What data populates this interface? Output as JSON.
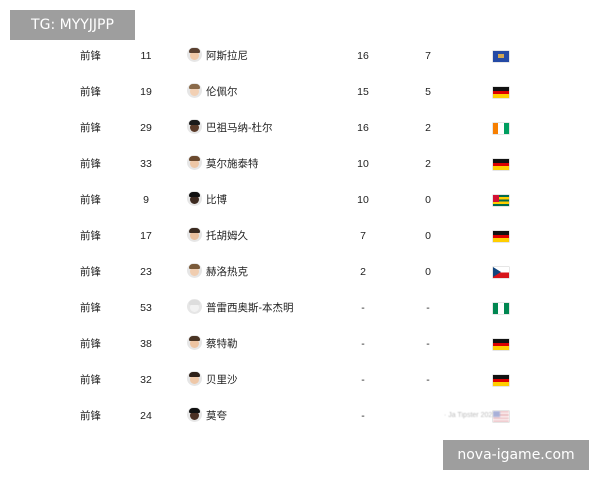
{
  "watermark_top": "TG: MYYJJPP",
  "watermark_bottom": "nova-igame.com",
  "blurred_source": "· Ja  Tipster 2023·",
  "players": [
    {
      "position": "前锋",
      "number": "11",
      "name": "阿斯拉尼",
      "apps": "16",
      "goals": "7",
      "flag": "kosovo-flag",
      "skin": "#f0c9a8",
      "hair": "#5a4030"
    },
    {
      "position": "前锋",
      "number": "19",
      "name": "伦佩尔",
      "apps": "15",
      "goals": "5",
      "flag": "germany-flag",
      "skin": "#f2d0b4",
      "hair": "#8a6a4a"
    },
    {
      "position": "前锋",
      "number": "29",
      "name": "巴祖马纳-杜尔",
      "apps": "16",
      "goals": "2",
      "flag": "ivory-coast-flag",
      "skin": "#5a3a28",
      "hair": "#1a1a1a"
    },
    {
      "position": "前锋",
      "number": "33",
      "name": "莫尔施泰特",
      "apps": "10",
      "goals": "2",
      "flag": "germany-flag",
      "skin": "#eec7a6",
      "hair": "#6b4a2e"
    },
    {
      "position": "前锋",
      "number": "9",
      "name": "比博",
      "apps": "10",
      "goals": "0",
      "flag": "togo-flag",
      "skin": "#3d2a20",
      "hair": "#111111"
    },
    {
      "position": "前锋",
      "number": "17",
      "name": "托胡姆久",
      "apps": "7",
      "goals": "0",
      "flag": "germany-flag",
      "skin": "#eac09e",
      "hair": "#3a2a20"
    },
    {
      "position": "前锋",
      "number": "23",
      "name": "赫洛热克",
      "apps": "2",
      "goals": "0",
      "flag": "czech-flag",
      "skin": "#f0cdb0",
      "hair": "#7a5a3a"
    },
    {
      "position": "前锋",
      "number": "53",
      "name": "普雷西奥斯-本杰明",
      "apps": "-",
      "goals": "-",
      "flag": "nigeria-flag",
      "skin": "#f2f2f2",
      "hair": "#dddddd"
    },
    {
      "position": "前锋",
      "number": "38",
      "name": "蔡特勒",
      "apps": "-",
      "goals": "-",
      "flag": "germany-flag",
      "skin": "#edc4a2",
      "hair": "#4a3424"
    },
    {
      "position": "前锋",
      "number": "32",
      "name": "贝里沙",
      "apps": "-",
      "goals": "-",
      "flag": "germany-flag",
      "skin": "#efc8a8",
      "hair": "#2e2018"
    },
    {
      "position": "前锋",
      "number": "24",
      "name": "莫夸",
      "apps": "-",
      "goals": "",
      "flag": "usa-flag",
      "skin": "#4a3024",
      "hair": "#111111"
    }
  ]
}
